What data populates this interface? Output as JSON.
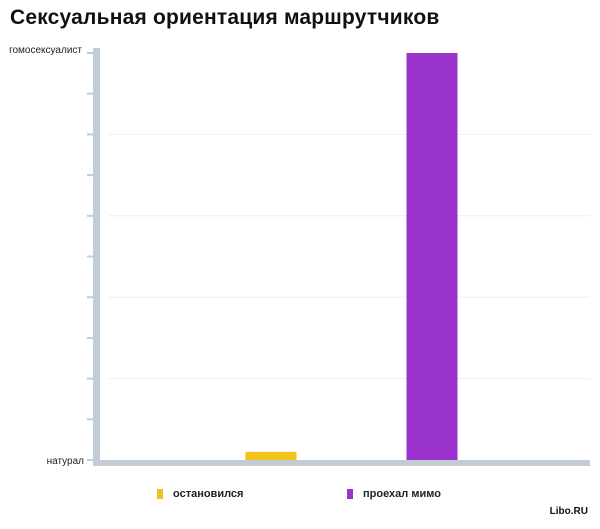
{
  "chart_data": {
    "type": "bar",
    "title": "Сексуальная ориентация маршрутчиков",
    "categories": [
      "остановился",
      "проехал мимо"
    ],
    "values": [
      2,
      100
    ],
    "ylim": [
      0,
      100
    ],
    "y_tick_labels": {
      "bottom": "натурал",
      "top": "гомосексуалист"
    },
    "legend": [
      "остановился",
      "проехал мимо"
    ],
    "legend_placement": "bottom",
    "grid": true,
    "colors": [
      "#f0c419",
      "#9933cc"
    ],
    "axis_color": "#c3ccd6"
  },
  "watermark": "Libo.RU"
}
